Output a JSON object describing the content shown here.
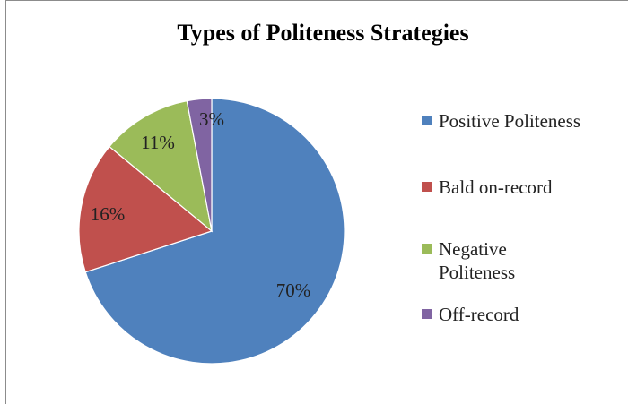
{
  "chart_data": {
    "type": "pie",
    "title": "Types of Politeness Strategies",
    "categories": [
      "Positive Politeness",
      "Bald on-record",
      "Negative Politeness",
      "Off-record"
    ],
    "values": [
      70,
      16,
      11,
      3
    ],
    "data_labels": [
      "70%",
      "16%",
      "11%",
      "3%"
    ],
    "colors": [
      "#4F81BD",
      "#C0504D",
      "#9BBB59",
      "#8064A2"
    ],
    "start_angle_deg": 0,
    "direction": "clockwise",
    "legend_position": "right"
  }
}
